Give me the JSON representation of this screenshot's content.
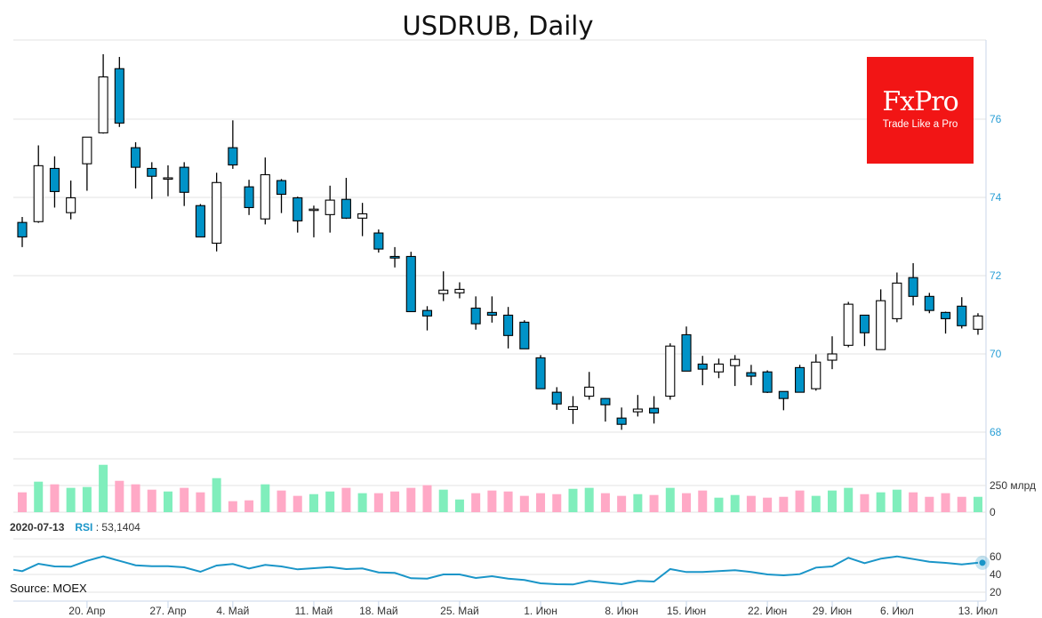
{
  "chart_data": {
    "type": "candlestick",
    "title": "USDRUB, Daily",
    "price_axis": {
      "ticks": [
        68,
        70,
        72,
        74,
        76
      ],
      "ylim": [
        67.7,
        78.0
      ]
    },
    "candles": [
      [
        73.36,
        73.5,
        72.73,
        72.99
      ],
      [
        73.38,
        75.33,
        73.35,
        74.81
      ],
      [
        74.74,
        75.05,
        73.74,
        74.15
      ],
      [
        73.61,
        74.43,
        73.44,
        73.99
      ],
      [
        74.86,
        75.54,
        74.17,
        75.54
      ],
      [
        75.65,
        77.66,
        75.63,
        77.08
      ],
      [
        77.29,
        77.59,
        75.8,
        75.9
      ],
      [
        75.27,
        75.41,
        74.23,
        74.77
      ],
      [
        74.74,
        74.9,
        73.96,
        74.54
      ],
      [
        74.48,
        74.82,
        74.03,
        74.5
      ],
      [
        74.77,
        74.9,
        73.78,
        74.13
      ],
      [
        73.79,
        73.83,
        72.99,
        72.99
      ],
      [
        72.83,
        74.63,
        72.62,
        74.38
      ],
      [
        75.27,
        75.97,
        74.73,
        74.83
      ],
      [
        74.27,
        74.45,
        73.55,
        73.74
      ],
      [
        73.45,
        75.02,
        73.31,
        74.58
      ],
      [
        74.43,
        74.47,
        73.6,
        74.08
      ],
      [
        73.99,
        74.02,
        73.1,
        73.4
      ],
      [
        73.69,
        73.79,
        72.98,
        73.7
      ],
      [
        73.56,
        74.3,
        73.1,
        73.93
      ],
      [
        73.95,
        74.5,
        73.45,
        73.47
      ],
      [
        73.47,
        73.86,
        73.01,
        73.58
      ],
      [
        73.09,
        73.18,
        72.59,
        72.68
      ],
      [
        72.49,
        72.73,
        72.21,
        72.45
      ],
      [
        72.49,
        72.61,
        71.08,
        71.08
      ],
      [
        71.11,
        71.22,
        70.6,
        70.97
      ],
      [
        71.54,
        72.11,
        71.35,
        71.63
      ],
      [
        71.56,
        71.83,
        71.42,
        71.65
      ],
      [
        71.17,
        71.47,
        70.62,
        70.77
      ],
      [
        71.06,
        71.47,
        70.8,
        70.99
      ],
      [
        70.99,
        71.2,
        70.14,
        70.47
      ],
      [
        70.81,
        70.86,
        70.13,
        70.13
      ],
      [
        69.9,
        69.97,
        69.11,
        69.11
      ],
      [
        69.02,
        69.15,
        68.57,
        68.72
      ],
      [
        68.58,
        68.92,
        68.21,
        68.65
      ],
      [
        68.92,
        69.54,
        68.83,
        69.15
      ],
      [
        68.86,
        68.87,
        68.27,
        68.7
      ],
      [
        68.36,
        68.63,
        68.06,
        68.2
      ],
      [
        68.52,
        68.95,
        68.4,
        68.59
      ],
      [
        68.61,
        68.92,
        68.22,
        68.49
      ],
      [
        68.92,
        70.27,
        68.83,
        70.2
      ],
      [
        70.49,
        70.7,
        69.56,
        69.56
      ],
      [
        69.74,
        69.95,
        69.2,
        69.61
      ],
      [
        69.54,
        69.88,
        69.38,
        69.74
      ],
      [
        69.7,
        69.97,
        69.18,
        69.86
      ],
      [
        69.52,
        69.72,
        69.2,
        69.43
      ],
      [
        69.54,
        69.58,
        69.0,
        69.02
      ],
      [
        69.04,
        69.04,
        68.56,
        68.86
      ],
      [
        69.65,
        69.72,
        69.02,
        69.02
      ],
      [
        69.11,
        69.99,
        69.06,
        69.79
      ],
      [
        69.84,
        70.45,
        69.61,
        70.0
      ],
      [
        70.22,
        71.33,
        70.17,
        71.27
      ],
      [
        70.99,
        70.99,
        70.2,
        70.54
      ],
      [
        70.11,
        71.65,
        70.11,
        71.36
      ],
      [
        70.9,
        72.08,
        70.81,
        71.81
      ],
      [
        71.95,
        72.32,
        71.24,
        71.47
      ],
      [
        71.47,
        71.56,
        71.04,
        71.11
      ],
      [
        71.06,
        71.08,
        70.52,
        70.9
      ],
      [
        71.22,
        71.45,
        70.65,
        70.72
      ],
      [
        70.63,
        71.04,
        70.49,
        70.97
      ]
    ],
    "volume": {
      "unit_label": "250 млрд",
      "ticks": [
        "0",
        "250 млрд"
      ],
      "values": [
        186,
        286,
        261,
        228,
        236,
        444,
        294,
        261,
        211,
        194,
        228,
        186,
        319,
        103,
        111,
        261,
        203,
        153,
        169,
        194,
        228,
        178,
        178,
        194,
        228,
        253,
        211,
        119,
        178,
        203,
        194,
        153,
        178,
        169,
        219,
        228,
        178,
        153,
        169,
        161,
        228,
        178,
        203,
        136,
        161,
        153,
        136,
        144,
        203,
        153,
        203,
        228,
        169,
        186,
        211,
        186,
        144,
        178,
        144,
        144
      ]
    },
    "rsi": {
      "date": "2020-07-13",
      "label": "RSI",
      "current": "53,1404",
      "ticks": [
        20,
        40,
        60
      ],
      "values": [
        43.7,
        52,
        49,
        48.7,
        55.3,
        60.3,
        55.3,
        50.3,
        49.3,
        49.3,
        48,
        43,
        50,
        51.7,
        46.7,
        50.7,
        49,
        45.7,
        47,
        48.3,
        46,
        46.7,
        42.3,
        41.7,
        35.7,
        35.3,
        40,
        40,
        36,
        38,
        35.3,
        33.7,
        30,
        29,
        28.7,
        32.7,
        30.7,
        29,
        32.7,
        32,
        46,
        42.7,
        42.7,
        43.7,
        44.7,
        42.7,
        40,
        39,
        40.3,
        47.7,
        49,
        58.7,
        52.7,
        57.7,
        60.3,
        57.3,
        54.3,
        53,
        51.3,
        53.14
      ]
    },
    "x_labels": [
      {
        "candle": 5,
        "text": "20. Апр"
      },
      {
        "candle": 10,
        "text": "27. Апр"
      },
      {
        "candle": 14,
        "text": "4. Май"
      },
      {
        "candle": 19,
        "text": "11. Май"
      },
      {
        "candle": 23,
        "text": "18. Май"
      },
      {
        "candle": 28,
        "text": "25. Май"
      },
      {
        "candle": 33,
        "text": "1. Июн"
      },
      {
        "candle": 38,
        "text": "8. Июн"
      },
      {
        "candle": 42,
        "text": "15. Июн"
      },
      {
        "candle": 47,
        "text": "22. Июн"
      },
      {
        "candle": 51,
        "text": "29. Июн"
      },
      {
        "candle": 55,
        "text": "6. Июл"
      },
      {
        "candle": 60,
        "text": "13. Июл"
      }
    ]
  },
  "header": {
    "title": "USDRUB, Daily"
  },
  "logo": {
    "brand": "FxPro",
    "tagline": "Trade Like a Pro"
  },
  "rsi_header": {
    "date": "2020-07-13",
    "label": "RSI",
    "sep": " : ",
    "value": "53,1404"
  },
  "source": "Source: MOEX",
  "colors": {
    "bear": "#0093c8",
    "bull": "#ffffff",
    "vol_up": "#80eebc",
    "vol_down": "#ffa9c6",
    "rsi": "#1a95c8",
    "axis_text": "#2a9fd6",
    "logo_bg": "#f21515"
  }
}
